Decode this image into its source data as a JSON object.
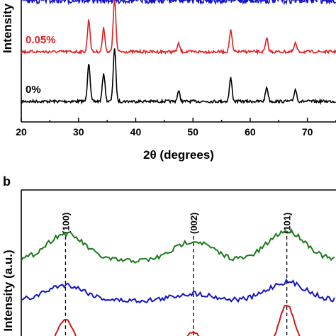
{
  "chart_data": [
    {
      "type": "line",
      "panel_label": "",
      "xlabel": "2θ (degrees)",
      "ylabel": "Intensity",
      "xlim": [
        20,
        75
      ],
      "xticks": [
        20,
        30,
        40,
        50,
        60,
        70
      ],
      "series": [
        {
          "name": "0%",
          "color": "#000000",
          "peaks": [
            [
              31.8,
              55
            ],
            [
              34.4,
              40
            ],
            [
              36.3,
              75
            ],
            [
              47.5,
              14
            ],
            [
              56.6,
              33
            ],
            [
              62.9,
              20
            ],
            [
              67.9,
              17
            ]
          ]
        },
        {
          "name": "0.05%",
          "color": "#e02020",
          "peaks": [
            [
              31.8,
              45
            ],
            [
              34.4,
              33
            ],
            [
              36.3,
              75
            ],
            [
              47.5,
              11
            ],
            [
              56.6,
              30
            ],
            [
              62.9,
              18
            ],
            [
              67.9,
              12
            ]
          ]
        },
        {
          "name": "",
          "color": "#1414c8",
          "peaks": []
        }
      ]
    },
    {
      "type": "line",
      "panel_label": "b",
      "ylabel": "Intensity (a.u.)",
      "reflections": [
        "(100)",
        "(002)",
        "(101)"
      ],
      "reflection_positions": [
        31.8,
        34.4,
        36.3
      ],
      "xlim": [
        30.9,
        37.3
      ],
      "series": [
        {
          "name": "",
          "color": "#1a7a1a",
          "peaks": [
            [
              31.8,
              38
            ],
            [
              34.4,
              28
            ],
            [
              36.3,
              42
            ]
          ]
        },
        {
          "name": "",
          "color": "#1414c8",
          "peaks": [
            [
              31.8,
              22
            ],
            [
              34.4,
              10
            ],
            [
              36.3,
              26
            ]
          ]
        },
        {
          "name": "",
          "color": "#d01818",
          "peaks": [
            [
              31.8,
              40
            ],
            [
              34.4,
              22
            ],
            [
              36.3,
              60
            ]
          ]
        }
      ]
    }
  ]
}
